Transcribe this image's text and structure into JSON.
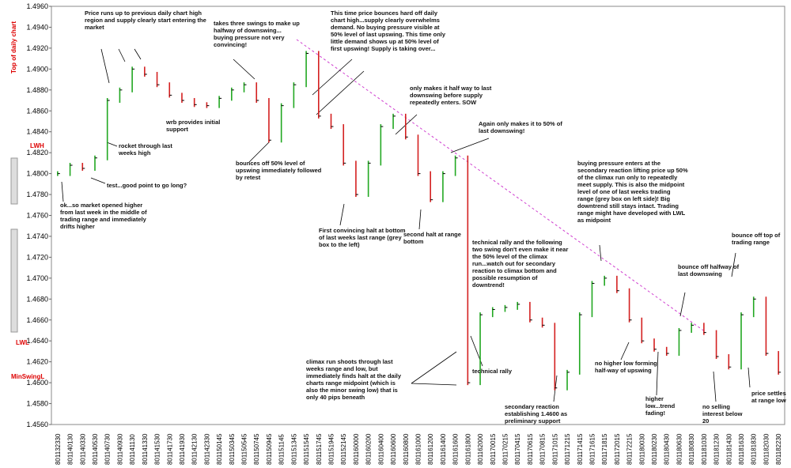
{
  "chart_data": {
    "type": "bar",
    "categories": [
      "801132330",
      "801140130",
      "801140330",
      "801140530",
      "801140730",
      "801140930",
      "801141130",
      "801141330",
      "801141530",
      "801141730",
      "801141930",
      "801142130",
      "801142330",
      "801150145",
      "801150345",
      "801150545",
      "801150745",
      "801150945",
      "801151145",
      "801151345",
      "801151545",
      "801151745",
      "801151945",
      "801152145",
      "801160000",
      "801160200",
      "801160400",
      "801160600",
      "801160800",
      "801161000",
      "801161200",
      "801161400",
      "801161600",
      "801161800",
      "801162000",
      "801170015",
      "801170215",
      "801170415",
      "801170615",
      "801170815",
      "801171015",
      "801171215",
      "801171415",
      "801171615",
      "801171815",
      "801172015",
      "801172215",
      "801180030",
      "801180230",
      "801180430",
      "801180630",
      "801180830",
      "801181030",
      "801181230",
      "801181430",
      "801181630",
      "801181830",
      "801182030",
      "801182230"
    ],
    "values": [
      1.48,
      1.4808,
      1.4805,
      1.4815,
      1.487,
      1.488,
      1.49,
      1.4895,
      1.4885,
      1.4875,
      1.487,
      1.4866,
      1.4865,
      1.4872,
      1.488,
      1.4885,
      1.487,
      1.4832,
      1.4865,
      1.4885,
      1.4915,
      1.4855,
      1.4845,
      1.481,
      1.478,
      1.481,
      1.4845,
      1.4855,
      1.4835,
      1.48,
      1.4775,
      1.48,
      1.4815,
      1.46,
      1.4665,
      1.467,
      1.4672,
      1.4675,
      1.466,
      1.4655,
      1.4595,
      1.461,
      1.4665,
      1.4695,
      1.47,
      1.4688,
      1.466,
      1.464,
      1.4632,
      1.4628,
      1.465,
      1.4655,
      1.4648,
      1.4625,
      1.4615,
      1.4665,
      1.468,
      1.4628,
      1.461
    ],
    "up_color": "#22a822",
    "down_color": "#d42020",
    "ylim": [
      1.456,
      1.496
    ],
    "yticks": [
      {
        "value": 1.456,
        "label": "1.4560"
      },
      {
        "value": 1.458,
        "label": "1.4580"
      },
      {
        "value": 1.46,
        "label": "1.4600"
      },
      {
        "value": 1.462,
        "label": "1.4620"
      },
      {
        "value": 1.464,
        "label": "1.4640"
      },
      {
        "value": 1.466,
        "label": "1.4660"
      },
      {
        "value": 1.468,
        "label": "1.4680"
      },
      {
        "value": 1.47,
        "label": "1.4700"
      },
      {
        "value": 1.472,
        "label": "1.4720"
      },
      {
        "value": 1.474,
        "label": "1.4740"
      },
      {
        "value": 1.476,
        "label": "1.4760"
      },
      {
        "value": 1.478,
        "label": "1.4780"
      },
      {
        "value": 1.48,
        "label": "1.4800"
      },
      {
        "value": 1.482,
        "label": "1.4820"
      },
      {
        "value": 1.484,
        "label": "1.4840"
      },
      {
        "value": 1.486,
        "label": "1.4860"
      },
      {
        "value": 1.488,
        "label": "1.4880"
      },
      {
        "value": 1.49,
        "label": "1.4900"
      },
      {
        "value": 1.492,
        "label": "1.4920"
      },
      {
        "value": 1.494,
        "label": "1.4940"
      },
      {
        "value": 1.496,
        "label": "1.4960"
      }
    ],
    "side_labels": [
      "Top of daily chart",
      "LWH",
      "LWL",
      "MinSwingL"
    ],
    "annotations": [
      "Price runs up to previous daily chart high region and supply clearly start entering the market",
      "takes three swings to make up halfway of downswing... buying pressure not very convincing!",
      "This time price bounces hard off daily chart high...supply clearly overwhelms demand. No buying pressure visible at 50% level of last upswing. This time only little demand shows up at 50% level of first upswing! Supply is taking over...",
      "only makes it half way to last downswing before supply repeatedly enters. SOW",
      "Again only makes it to 50% of last downswing!",
      "wrb provides initial support",
      "rocket through last weeks high",
      "bounces off 50% level of upswing immediately followed by retest",
      "test...good point to go long?",
      "ok...so market opened higher from last week in the middle of trading range and immediately drifts higher",
      "First convincing halt at bottom of last weeks last range (grey box to the left)",
      "second halt at range bottom",
      "buying pressure enters at the secondary reaction lifting price up 50% of the climax run only to repeatedly meet supply. This is also the midpoint level of one of last weeks trading range (grey box on left side)! Big downtrend still stays intact. Trading range might have developed with LWL as midpoint",
      "technical rally and the following two swing don't even make it near the 50% level of the climax run...watch out for secondary reaction to climax bottom and possible resumption of downtrend!",
      "bounce off top of trading range",
      "bounce off halfway of last downswing",
      "climax run shoots through last weeks range and low, but immediately finds halt at the daily charts range midpoint (which is also the minor swing low) that is only 40 pips beneath",
      "technical rally",
      "no higher low forming half-way of upswing",
      "higher low...trend fading!",
      "no selling interest below 20",
      "price settles at range low",
      "secondary reaction establishing 1.4600 as preliminary support"
    ]
  }
}
